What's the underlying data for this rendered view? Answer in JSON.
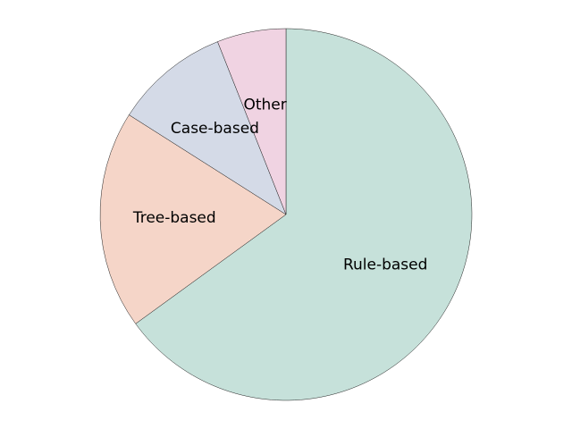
{
  "chart_data": {
    "type": "pie",
    "title": "",
    "start_angle_deg": 90,
    "direction": "clockwise",
    "legend": "none",
    "slices": [
      {
        "label": "Rule-based",
        "value": 65,
        "color": "#c6e1da"
      },
      {
        "label": "Tree-based",
        "value": 19,
        "color": "#f5d5c8"
      },
      {
        "label": "Case-based",
        "value": 10,
        "color": "#d4dae7"
      },
      {
        "label": "Other",
        "value": 6,
        "color": "#f0d3e2"
      }
    ]
  }
}
